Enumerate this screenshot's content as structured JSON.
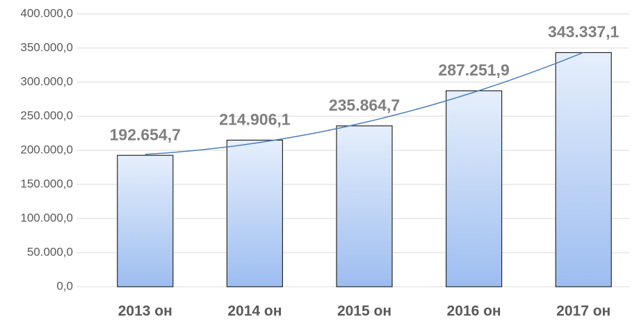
{
  "chart_data": {
    "type": "bar",
    "categories": [
      "2013 он",
      "2014 он",
      "2015 он",
      "2016 он",
      "2017 он"
    ],
    "values": [
      192654.7,
      214906.1,
      235864.7,
      287251.9,
      343337.1
    ],
    "value_labels": [
      "192.654,7",
      "214.906,1",
      "235.864,7",
      "287.251,9",
      "343.337,1"
    ],
    "ylim": [
      0,
      400000
    ],
    "yticks": [
      {
        "value": 0,
        "label": "0,0"
      },
      {
        "value": 50000,
        "label": "50.000,0"
      },
      {
        "value": 100000,
        "label": "100.000,0"
      },
      {
        "value": 150000,
        "label": "150.000,0"
      },
      {
        "value": 200000,
        "label": "200.000,0"
      },
      {
        "value": 250000,
        "label": "250.000,0"
      },
      {
        "value": 300000,
        "label": "300.000,0"
      },
      {
        "value": 350000,
        "label": "350.000,0"
      },
      {
        "value": 400000,
        "label": "400.000,0"
      }
    ],
    "grid": true,
    "trendline": "polynomial",
    "color": "#9dbdf0"
  }
}
